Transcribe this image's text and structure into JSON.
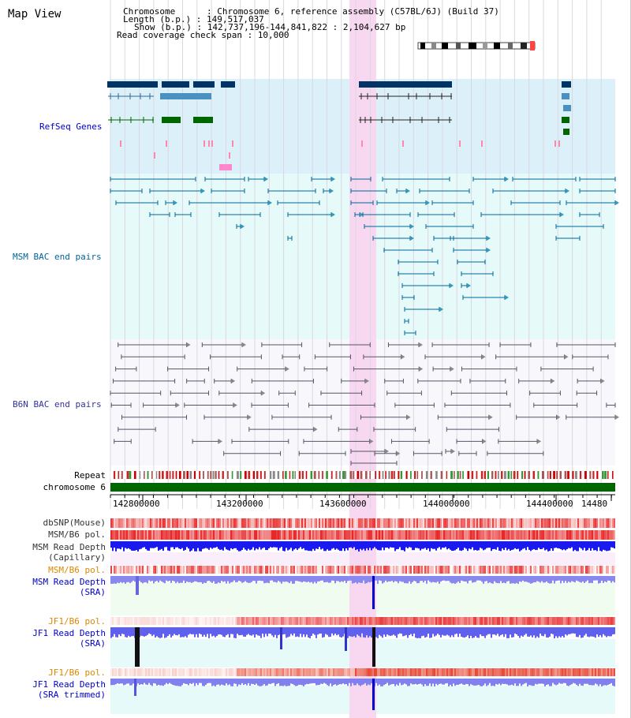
{
  "title": "Map View",
  "info": {
    "chromosome": "Chromosome      : Chromosome 6, reference assembly (C57BL/6J) (Build 37)",
    "length": "Length (b.p.) : 149,517,037",
    "show": "Show (b.p.) : 142,737,196-144,841,822 : 2,104,627 bp",
    "coverage": "Read coverage check span : 10,000"
  },
  "tracks": {
    "refseq": "RefSeq Genes",
    "msm_bac": "MSM BAC end pairs",
    "b6n_bac": "B6N BAC end pairs",
    "repeat": "Repeat",
    "chromosome": "chromosome 6",
    "dbsnp": "dbSNP(Mouse)",
    "msm_b6_pol_1": "MSM/B6 pol.",
    "msm_depth_cap_1": "MSM Read Depth",
    "msm_depth_cap_2": "(Capillary)",
    "msm_b6_pol_2": "MSM/B6 pol.",
    "msm_depth_sra_1": "MSM Read Depth",
    "msm_depth_sra_2": "(SRA)",
    "jf1_b6_pol_1": "JF1/B6 pol.",
    "jf1_depth_sra_1": "JF1 Read Depth",
    "jf1_depth_sra_2": "(SRA)",
    "jf1_b6_pol_2": "JF1/B6 pol.",
    "jf1_depth_trim_1": "JF1 Read Depth",
    "jf1_depth_trim_2": "(SRA trimmed)"
  },
  "axis": {
    "ticks": [
      "142800000",
      "143200000",
      "143600000",
      "144000000",
      "144400000",
      "14480"
    ]
  },
  "colors": {
    "refseq_label": "#0000cc",
    "msm_label": "#006699",
    "b6n_label": "#333399",
    "pol_orange": "#dd8800",
    "depth_blue": "#0000cc",
    "highlight": "#f8d8f0",
    "chrom_green": "#006600"
  }
}
